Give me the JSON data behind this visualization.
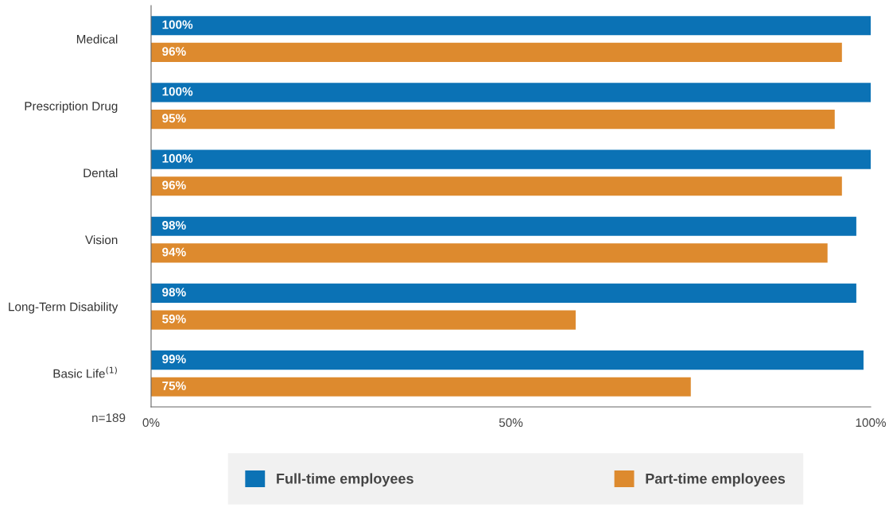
{
  "chart_data": {
    "type": "bar",
    "orientation": "horizontal",
    "categories": [
      "Medical",
      "Prescription Drug",
      "Dental",
      "Vision",
      "Long-Term Disability",
      "Basic Life$^{(1)}$"
    ],
    "series": [
      {
        "name": "Full-time employees",
        "color": "#0b72b5",
        "values": [
          100,
          100,
          100,
          98,
          98,
          99
        ],
        "value_labels": [
          "100%",
          "100%",
          "100%",
          "98%",
          "98%",
          "99%"
        ]
      },
      {
        "name": "Part-time employees",
        "color": "#dd8a2e",
        "values": [
          96,
          95,
          96,
          94,
          59,
          75
        ],
        "value_labels": [
          "96%",
          "95%",
          "96%",
          "94%",
          "59%",
          "75%"
        ]
      }
    ],
    "xlim": [
      0,
      100
    ],
    "xticks": [
      {
        "value": 0,
        "label": "0%"
      },
      {
        "value": 50,
        "label": "50%"
      },
      {
        "value": 100,
        "label": "100%"
      }
    ],
    "grid": false,
    "legend": "bottom",
    "annotations": [
      "n=189"
    ]
  }
}
